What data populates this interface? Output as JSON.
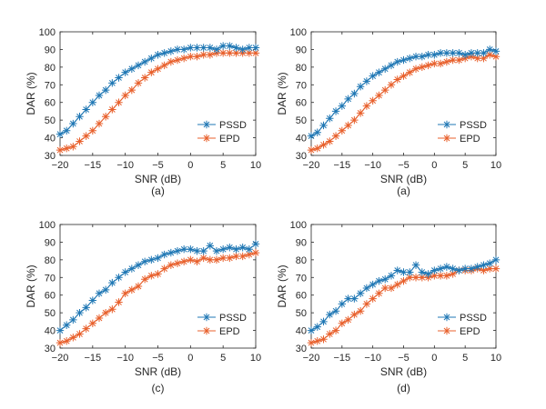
{
  "colors": {
    "PSSD": "#1f77b4",
    "EPD": "#e8602c",
    "axis": "#262626"
  },
  "chart_data": [
    {
      "type": "line",
      "caption": "(a)",
      "xlabel": "SNR (dB)",
      "ylabel": "DAR (%)",
      "xlim": [
        -20,
        10
      ],
      "ylim": [
        30,
        100
      ],
      "xticks": [
        -20,
        -15,
        -10,
        -5,
        0,
        5,
        10
      ],
      "yticks": [
        30,
        40,
        50,
        60,
        70,
        80,
        90,
        100
      ],
      "x": [
        -20,
        -19,
        -18,
        -17,
        -16,
        -15,
        -14,
        -13,
        -12,
        -11,
        -10,
        -9,
        -8,
        -7,
        -6,
        -5,
        -4,
        -3,
        -2,
        -1,
        0,
        1,
        2,
        3,
        4,
        5,
        6,
        7,
        8,
        9,
        10
      ],
      "series": [
        {
          "name": "PSSD",
          "values": [
            42,
            44,
            48,
            52,
            56,
            60,
            64,
            67,
            71,
            74,
            77,
            79,
            81,
            83,
            85,
            87,
            88,
            89,
            90,
            90,
            91,
            91,
            91,
            91,
            90,
            92,
            92,
            91,
            90,
            91,
            91
          ]
        },
        {
          "name": "EPD",
          "values": [
            33,
            34,
            35,
            38,
            41,
            44,
            48,
            52,
            56,
            60,
            64,
            67,
            71,
            74,
            77,
            79,
            81,
            83,
            84,
            85,
            86,
            86,
            87,
            87,
            88,
            88,
            88,
            88,
            88,
            88,
            88
          ]
        }
      ],
      "legend_position": "bottom-right"
    },
    {
      "type": "line",
      "caption": "(a)",
      "xlabel": "SNR (dB)",
      "ylabel": "DAR (%)",
      "xlim": [
        -20,
        10
      ],
      "ylim": [
        30,
        100
      ],
      "xticks": [
        -20,
        -15,
        -10,
        -5,
        0,
        5,
        10
      ],
      "yticks": [
        30,
        40,
        50,
        60,
        70,
        80,
        90,
        100
      ],
      "x": [
        -20,
        -19,
        -18,
        -17,
        -16,
        -15,
        -14,
        -13,
        -12,
        -11,
        -10,
        -9,
        -8,
        -7,
        -6,
        -5,
        -4,
        -3,
        -2,
        -1,
        0,
        1,
        2,
        3,
        4,
        5,
        6,
        7,
        8,
        9,
        10
      ],
      "series": [
        {
          "name": "PSSD",
          "values": [
            41,
            43,
            47,
            51,
            55,
            58,
            62,
            65,
            69,
            72,
            75,
            77,
            79,
            81,
            83,
            84,
            85,
            86,
            86,
            87,
            87,
            88,
            88,
            88,
            88,
            87,
            88,
            88,
            88,
            90,
            89
          ]
        },
        {
          "name": "EPD",
          "values": [
            33,
            34,
            36,
            38,
            41,
            44,
            47,
            50,
            54,
            58,
            61,
            64,
            67,
            70,
            73,
            75,
            77,
            79,
            80,
            81,
            82,
            82,
            83,
            84,
            84,
            85,
            86,
            85,
            85,
            87,
            86
          ]
        }
      ],
      "legend_position": "bottom-right"
    },
    {
      "type": "line",
      "caption": "(c)",
      "xlabel": "SNR (dB)",
      "ylabel": "DAR (%)",
      "xlim": [
        -20,
        10
      ],
      "ylim": [
        30,
        100
      ],
      "xticks": [
        -20,
        -15,
        -10,
        -5,
        0,
        5,
        10
      ],
      "yticks": [
        30,
        40,
        50,
        60,
        70,
        80,
        90,
        100
      ],
      "x": [
        -20,
        -19,
        -18,
        -17,
        -16,
        -15,
        -14,
        -13,
        -12,
        -11,
        -10,
        -9,
        -8,
        -7,
        -6,
        -5,
        -4,
        -3,
        -2,
        -1,
        0,
        1,
        2,
        3,
        4,
        5,
        6,
        7,
        8,
        9,
        10
      ],
      "series": [
        {
          "name": "PSSD",
          "values": [
            40,
            43,
            46,
            50,
            53,
            57,
            61,
            63,
            67,
            70,
            73,
            75,
            77,
            79,
            80,
            81,
            83,
            84,
            85,
            86,
            86,
            85,
            85,
            88,
            85,
            86,
            87,
            86,
            87,
            86,
            89
          ]
        },
        {
          "name": "EPD",
          "values": [
            33,
            34,
            36,
            38,
            41,
            44,
            47,
            50,
            52,
            56,
            61,
            63,
            65,
            69,
            71,
            72,
            75,
            77,
            78,
            79,
            80,
            79,
            81,
            80,
            80,
            81,
            81,
            82,
            82,
            83,
            84
          ]
        }
      ],
      "legend_position": "bottom-right"
    },
    {
      "type": "line",
      "caption": "(d)",
      "xlabel": "SNR (dB)",
      "ylabel": "DAR (%)",
      "xlim": [
        -20,
        10
      ],
      "ylim": [
        30,
        100
      ],
      "xticks": [
        -20,
        -15,
        -10,
        -5,
        0,
        5,
        10
      ],
      "yticks": [
        30,
        40,
        50,
        60,
        70,
        80,
        90,
        100
      ],
      "x": [
        -20,
        -19,
        -18,
        -17,
        -16,
        -15,
        -14,
        -13,
        -12,
        -11,
        -10,
        -9,
        -8,
        -7,
        -6,
        -5,
        -4,
        -3,
        -2,
        -1,
        0,
        1,
        2,
        3,
        4,
        5,
        6,
        7,
        8,
        9,
        10
      ],
      "series": [
        {
          "name": "PSSD",
          "values": [
            40,
            42,
            45,
            49,
            51,
            55,
            58,
            58,
            61,
            64,
            66,
            68,
            69,
            71,
            74,
            73,
            73,
            77,
            73,
            72,
            74,
            75,
            76,
            75,
            74,
            75,
            75,
            76,
            77,
            78,
            80
          ]
        },
        {
          "name": "EPD",
          "values": [
            33,
            34,
            35,
            38,
            40,
            44,
            46,
            49,
            51,
            55,
            58,
            61,
            64,
            64,
            66,
            68,
            70,
            70,
            70,
            70,
            71,
            71,
            71,
            72,
            74,
            74,
            74,
            75,
            74,
            75,
            75
          ]
        }
      ],
      "legend_position": "bottom-right"
    }
  ]
}
